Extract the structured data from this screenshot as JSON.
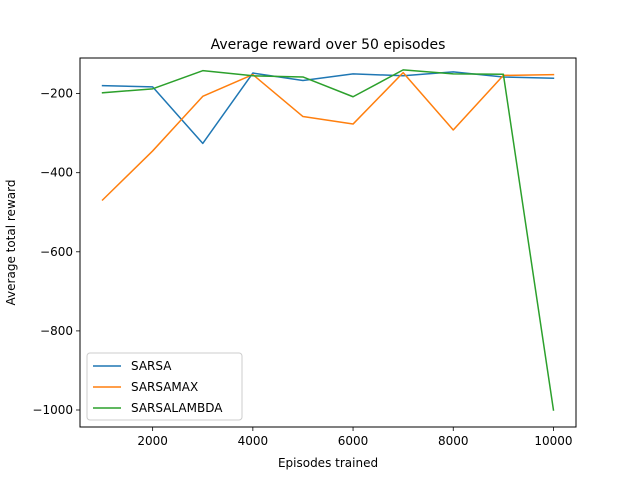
{
  "chart_data": {
    "type": "line",
    "title": "Average reward over 50 episodes",
    "xlabel": "Episodes trained",
    "ylabel": "Average total reward",
    "x": [
      1000,
      2000,
      3000,
      4000,
      5000,
      6000,
      7000,
      8000,
      9000,
      10000
    ],
    "xlim": [
      550,
      10450
    ],
    "ylim": [
      -1043,
      -110
    ],
    "xticks": [
      2000,
      4000,
      6000,
      8000,
      10000
    ],
    "yticks": [
      -1000,
      -800,
      -600,
      -400,
      -200
    ],
    "xtick_labels": [
      "2000",
      "4000",
      "6000",
      "8000",
      "10000"
    ],
    "ytick_labels": [
      "−1000",
      "−800",
      "−600",
      "−400",
      "−200"
    ],
    "grid": false,
    "legend_position": "lower-left",
    "series": [
      {
        "name": "SARSA",
        "color": "#1f77b4",
        "values": [
          -180,
          -183,
          -326,
          -148,
          -167,
          -150,
          -155,
          -145,
          -158,
          -161
        ]
      },
      {
        "name": "SARSAMAX",
        "color": "#ff7f0e",
        "values": [
          -469,
          -345,
          -207,
          -152,
          -258,
          -277,
          -147,
          -292,
          -154,
          -152
        ]
      },
      {
        "name": "SARSALAMBDA",
        "color": "#2ca02c",
        "values": [
          -198,
          -188,
          -142,
          -155,
          -158,
          -208,
          -140,
          -150,
          -151,
          -1000
        ]
      }
    ]
  }
}
